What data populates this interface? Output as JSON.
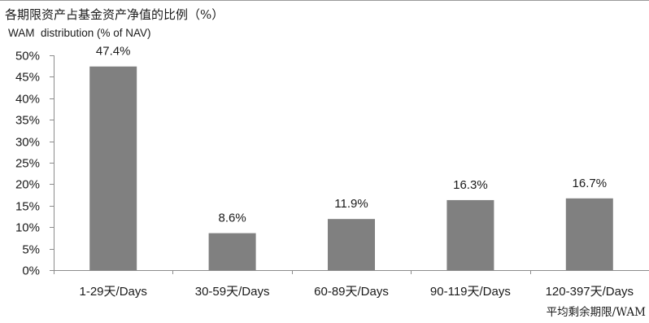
{
  "chart_data": {
    "type": "bar",
    "title": "各期限资产占基金资产净值的比例（%）",
    "subtitle": "WAM  distribution (% of NAV)",
    "xlabel": "平均剩余期限/WAM",
    "ylabel": "",
    "categories": [
      "1-29天/Days",
      "30-59天/Days",
      "60-89天/Days",
      "90-119天/Days",
      "120-397天/Days"
    ],
    "values": [
      47.4,
      8.6,
      11.9,
      16.3,
      16.7
    ],
    "data_labels": [
      "47.4%",
      "8.6%",
      "11.9%",
      "16.3%",
      "16.7%"
    ],
    "ylim": [
      0,
      50
    ],
    "yticks": [
      0,
      5,
      10,
      15,
      20,
      25,
      30,
      35,
      40,
      45,
      50
    ],
    "ytick_labels": [
      "0%",
      "5%",
      "10%",
      "15%",
      "20%",
      "25%",
      "30%",
      "35%",
      "40%",
      "45%",
      "50%"
    ],
    "grid": false,
    "legend": "none",
    "bar_color": "#808080",
    "axis_color": "#8c8c8c"
  }
}
